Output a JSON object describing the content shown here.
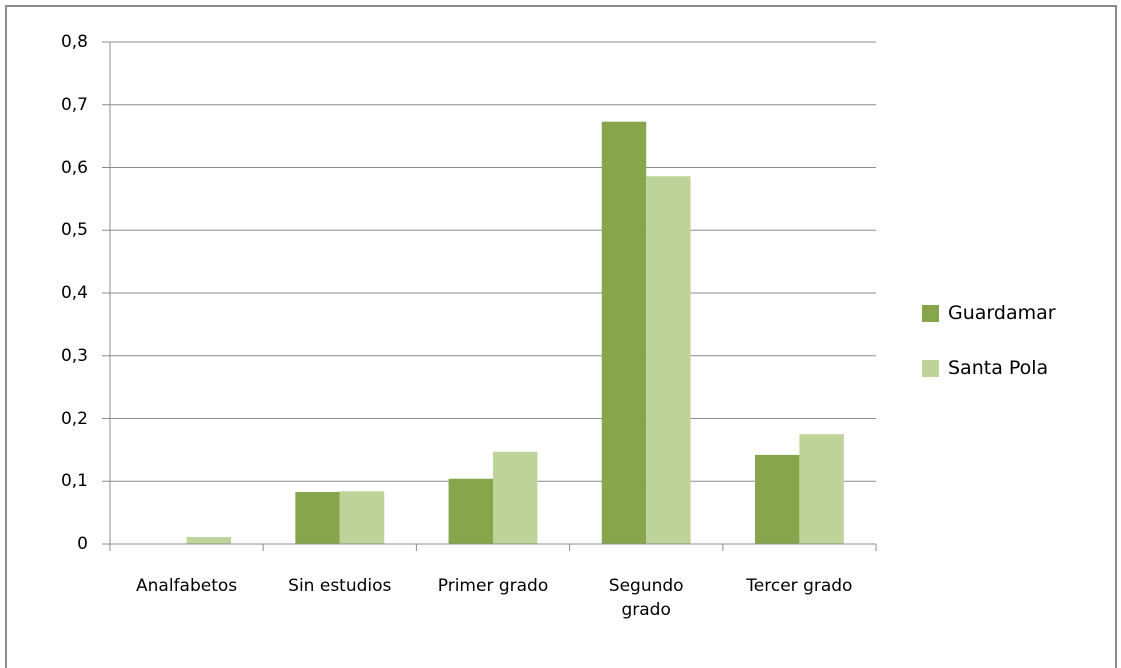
{
  "chart_data": {
    "type": "bar",
    "categories": [
      "Analfabetos",
      "Sin estudios",
      "Primer grado",
      "Segundo grado",
      "Tercer grado"
    ],
    "series": [
      {
        "name": "Guardamar",
        "color": "#87a64c",
        "values": [
          0,
          0.083,
          0.104,
          0.673,
          0.142
        ]
      },
      {
        "name": "Santa Pola",
        "color": "#bdd399",
        "values": [
          0.011,
          0.084,
          0.147,
          0.586,
          0.175
        ]
      }
    ],
    "ylim": [
      0,
      0.8
    ],
    "yticks": [
      {
        "value": 0,
        "label": "0"
      },
      {
        "value": 0.1,
        "label": "0,1"
      },
      {
        "value": 0.2,
        "label": "0,2"
      },
      {
        "value": 0.3,
        "label": "0,3"
      },
      {
        "value": 0.4,
        "label": "0,4"
      },
      {
        "value": 0.5,
        "label": "0,5"
      },
      {
        "value": 0.6,
        "label": "0,6"
      },
      {
        "value": 0.7,
        "label": "0,7"
      },
      {
        "value": 0.8,
        "label": "0,8"
      }
    ],
    "grid": true,
    "legend": "right"
  }
}
